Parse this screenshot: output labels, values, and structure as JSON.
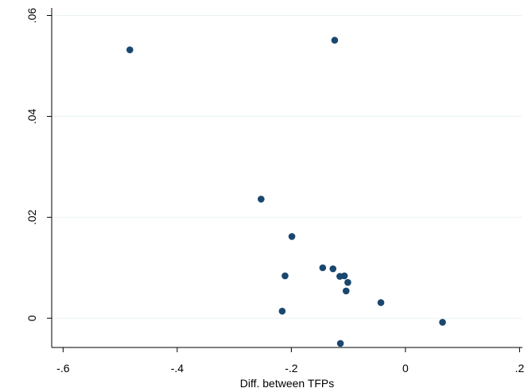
{
  "chart_data": {
    "type": "scatter",
    "title": "",
    "xlabel": "Diff. between TFPs",
    "ylabel": "",
    "xlim": [
      -0.62,
      0.205
    ],
    "ylim": [
      -0.0058,
      0.0615
    ],
    "xticks": [
      -0.6,
      -0.4,
      -0.2,
      0,
      0.2
    ],
    "xtick_labels": [
      "-.6",
      "-.4",
      "-.2",
      "0",
      ".2"
    ],
    "yticks": [
      0,
      0.02,
      0.04,
      0.06
    ],
    "ytick_labels": [
      "0",
      ".02",
      ".04",
      ".06"
    ],
    "grid": "horizontal",
    "legend": "none",
    "point_color": "#1a476f",
    "gridline_color": "#eaf2f3",
    "points": [
      {
        "x": -0.483,
        "y": 0.0532
      },
      {
        "x": -0.124,
        "y": 0.0551
      },
      {
        "x": -0.253,
        "y": 0.0236
      },
      {
        "x": -0.199,
        "y": 0.0162
      },
      {
        "x": -0.211,
        "y": 0.0084
      },
      {
        "x": -0.145,
        "y": 0.01
      },
      {
        "x": -0.127,
        "y": 0.0098
      },
      {
        "x": -0.115,
        "y": 0.0083
      },
      {
        "x": -0.107,
        "y": 0.0084
      },
      {
        "x": -0.101,
        "y": 0.0071
      },
      {
        "x": -0.104,
        "y": 0.0054
      },
      {
        "x": -0.043,
        "y": 0.0031
      },
      {
        "x": -0.216,
        "y": 0.0014
      },
      {
        "x": 0.065,
        "y": -0.0008
      },
      {
        "x": -0.114,
        "y": -0.005
      }
    ]
  }
}
